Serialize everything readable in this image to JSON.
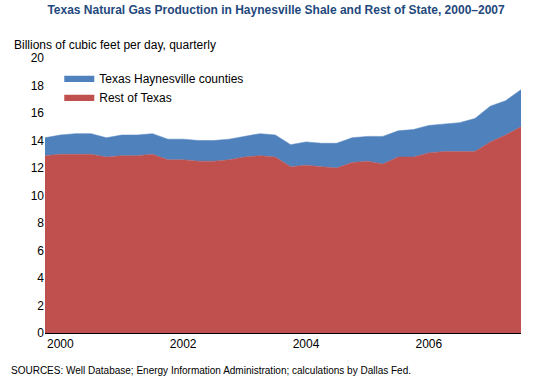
{
  "chart_data": {
    "type": "area",
    "stacked": true,
    "title": "Texas Natural Gas Production in Haynesville Shale and Rest of State, 2000–2007",
    "subtitle": "Billions of cubic feet per day, quarterly",
    "source": "SOURCES: Well Database; Energy Information Administration; calculations by Dallas Fed.",
    "categories": [
      null,
      "2000",
      null,
      null,
      null,
      null,
      null,
      null,
      null,
      "2002",
      null,
      null,
      null,
      null,
      null,
      null,
      null,
      "2004",
      null,
      null,
      null,
      null,
      null,
      null,
      null,
      "2006",
      null,
      null,
      null,
      null,
      null,
      null
    ],
    "series": [
      {
        "name": "Rest of Texas",
        "color": "#C0504D",
        "values": [
          12.9,
          13.0,
          13.0,
          13.0,
          12.8,
          12.9,
          12.9,
          13.0,
          12.6,
          12.6,
          12.5,
          12.5,
          12.6,
          12.8,
          12.9,
          12.8,
          12.1,
          12.2,
          12.1,
          12.0,
          12.4,
          12.5,
          12.3,
          12.8,
          12.8,
          13.1,
          13.2,
          13.2,
          13.2,
          13.9,
          14.4,
          15.0
        ]
      },
      {
        "name": "Texas Haynesville counties",
        "color": "#4F81BD",
        "values": [
          1.3,
          1.4,
          1.5,
          1.5,
          1.4,
          1.5,
          1.5,
          1.5,
          1.5,
          1.5,
          1.5,
          1.5,
          1.5,
          1.5,
          1.6,
          1.6,
          1.6,
          1.7,
          1.7,
          1.8,
          1.8,
          1.8,
          2.0,
          1.9,
          2.0,
          2.0,
          2.0,
          2.1,
          2.4,
          2.6,
          2.5,
          2.7
        ]
      }
    ],
    "ylim": [
      0,
      20
    ],
    "yticks": [
      0,
      2,
      4,
      6,
      8,
      10,
      12,
      14,
      16,
      18,
      20
    ],
    "grid": false,
    "legend": "upper left"
  }
}
